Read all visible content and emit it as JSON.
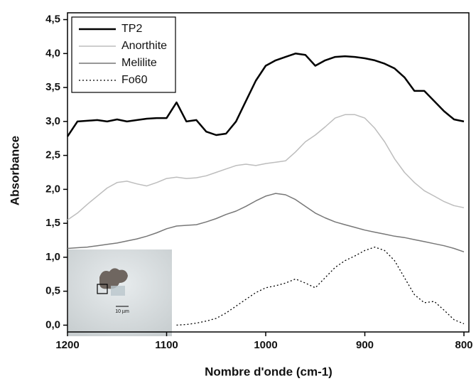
{
  "chart_data": {
    "type": "line",
    "xlabel": "Nombre d'onde (cm-1)",
    "ylabel": "Absorbance",
    "x": [
      1200,
      1190,
      1180,
      1170,
      1160,
      1150,
      1140,
      1130,
      1120,
      1110,
      1100,
      1090,
      1080,
      1070,
      1060,
      1050,
      1040,
      1030,
      1020,
      1010,
      1000,
      990,
      980,
      970,
      960,
      950,
      940,
      930,
      920,
      910,
      900,
      890,
      880,
      870,
      860,
      850,
      840,
      830,
      820,
      810,
      800
    ],
    "xlim": [
      1200,
      795
    ],
    "xticks": [
      1200,
      1100,
      1000,
      900,
      800
    ],
    "ylim": [
      -0.1,
      4.6
    ],
    "yticks": [
      {
        "value": 0,
        "label": "0,0"
      },
      {
        "value": 0.5,
        "label": "0,5"
      },
      {
        "value": 1,
        "label": "1,0"
      },
      {
        "value": 1.5,
        "label": "1,5"
      },
      {
        "value": 2,
        "label": "2,0"
      },
      {
        "value": 2.5,
        "label": "2,5"
      },
      {
        "value": 3,
        "label": "3,0"
      },
      {
        "value": 3.5,
        "label": "3,5"
      },
      {
        "value": 4,
        "label": "4,0"
      },
      {
        "value": 4.5,
        "label": "4,5"
      }
    ],
    "legend": "upper left",
    "annotations": [
      "10 µm"
    ],
    "series": [
      {
        "name": "TP2",
        "color": "#000000",
        "width": 2.5,
        "dash": "solid",
        "values": [
          2.78,
          3.0,
          3.01,
          3.02,
          3.0,
          3.03,
          3.0,
          3.02,
          3.04,
          3.05,
          3.05,
          3.28,
          3.0,
          3.02,
          2.85,
          2.8,
          2.82,
          3.0,
          3.3,
          3.6,
          3.82,
          3.9,
          3.95,
          4.0,
          3.98,
          3.82,
          3.9,
          3.95,
          3.96,
          3.95,
          3.93,
          3.9,
          3.85,
          3.78,
          3.65,
          3.45,
          3.45,
          3.3,
          3.15,
          3.03,
          3.0
        ]
      },
      {
        "name": "Anorthite",
        "color": "#bdbdbd",
        "width": 1.5,
        "dash": "solid",
        "values": [
          1.55,
          1.65,
          1.78,
          1.9,
          2.02,
          2.1,
          2.12,
          2.08,
          2.05,
          2.1,
          2.16,
          2.18,
          2.16,
          2.17,
          2.2,
          2.25,
          2.3,
          2.35,
          2.37,
          2.35,
          2.38,
          2.4,
          2.42,
          2.55,
          2.7,
          2.8,
          2.92,
          3.05,
          3.1,
          3.1,
          3.05,
          2.9,
          2.7,
          2.45,
          2.25,
          2.1,
          1.98,
          1.9,
          1.82,
          1.76,
          1.73
        ]
      },
      {
        "name": "Melilite",
        "color": "#777777",
        "width": 1.5,
        "dash": "solid",
        "values": [
          1.13,
          1.14,
          1.15,
          1.17,
          1.19,
          1.21,
          1.24,
          1.27,
          1.31,
          1.36,
          1.42,
          1.46,
          1.47,
          1.48,
          1.52,
          1.57,
          1.63,
          1.68,
          1.75,
          1.83,
          1.9,
          1.94,
          1.92,
          1.85,
          1.75,
          1.65,
          1.58,
          1.52,
          1.48,
          1.44,
          1.4,
          1.37,
          1.34,
          1.31,
          1.29,
          1.26,
          1.23,
          1.2,
          1.17,
          1.13,
          1.08
        ]
      },
      {
        "name": "Fo60",
        "color": "#000000",
        "width": 1.3,
        "dash": "dotted",
        "values": [
          null,
          null,
          null,
          null,
          null,
          null,
          null,
          null,
          null,
          null,
          null,
          0,
          0.01,
          0.03,
          0.06,
          0.1,
          0.18,
          0.28,
          0.38,
          0.48,
          0.55,
          0.58,
          0.62,
          0.68,
          0.62,
          0.55,
          0.7,
          0.85,
          0.95,
          1.02,
          1.1,
          1.15,
          1.1,
          0.95,
          0.7,
          0.45,
          0.33,
          0.35,
          0.22,
          0.08,
          0.02
        ]
      }
    ]
  }
}
